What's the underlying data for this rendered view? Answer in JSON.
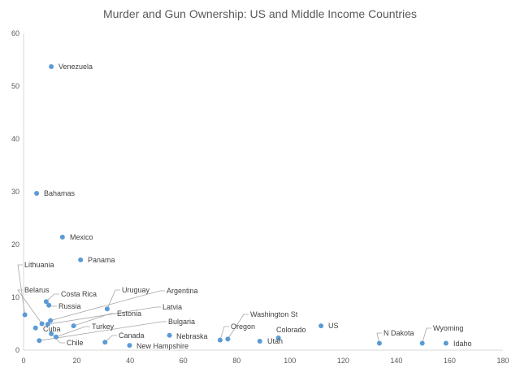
{
  "chart_data": {
    "type": "scatter",
    "title": "Murder and Gun Ownership: US and Middle Income Countries",
    "xlabel": "",
    "ylabel": "",
    "xlim": [
      0,
      180
    ],
    "ylim": [
      0,
      60
    ],
    "xticks": [
      0,
      20,
      40,
      60,
      80,
      100,
      120,
      140,
      160,
      180
    ],
    "yticks": [
      0,
      10,
      20,
      30,
      40,
      50,
      60
    ],
    "grid": false,
    "marker_color": "#5B9BD5",
    "points": [
      {
        "label": "Venezuela",
        "x": 10.4,
        "y": 53.7
      },
      {
        "label": "Bahamas",
        "x": 4.9,
        "y": 29.7
      },
      {
        "label": "Mexico",
        "x": 14.6,
        "y": 21.4
      },
      {
        "label": "Panama",
        "x": 21.4,
        "y": 17.1
      },
      {
        "label": "Lithuania",
        "x": 0.5,
        "y": 6.7
      },
      {
        "label": "Belarus",
        "x": 6.9,
        "y": 5.0
      },
      {
        "label": "Costa Rica",
        "x": 8.5,
        "y": 9.2
      },
      {
        "label": "Russia",
        "x": 9.5,
        "y": 8.5
      },
      {
        "label": "Uruguay",
        "x": 31.4,
        "y": 7.8
      },
      {
        "label": "Argentina",
        "x": 10.1,
        "y": 5.6
      },
      {
        "label": "Latvia",
        "x": 9.1,
        "y": 4.9
      },
      {
        "label": "Estonia",
        "x": 18.8,
        "y": 4.6
      },
      {
        "label": "Cuba",
        "x": 4.5,
        "y": 4.2
      },
      {
        "label": "Chile",
        "x": 10.4,
        "y": 3.1
      },
      {
        "label": "Turkey",
        "x": 12.2,
        "y": 2.5
      },
      {
        "label": "Bulgaria",
        "x": 5.9,
        "y": 1.8
      },
      {
        "label": "Canada",
        "x": 30.6,
        "y": 1.5
      },
      {
        "label": "New Hampshire",
        "x": 39.8,
        "y": 0.9
      },
      {
        "label": "Nebraska",
        "x": 54.8,
        "y": 2.8
      },
      {
        "label": "Oregon",
        "x": 73.8,
        "y": 1.9
      },
      {
        "label": "Washington St",
        "x": 76.7,
        "y": 2.1
      },
      {
        "label": "Utah",
        "x": 88.7,
        "y": 1.7
      },
      {
        "label": "Colorado",
        "x": 95.7,
        "y": 2.3
      },
      {
        "label": "US",
        "x": 111.7,
        "y": 4.6
      },
      {
        "label": "N Dakota",
        "x": 133.6,
        "y": 1.3
      },
      {
        "label": "Wyoming",
        "x": 149.7,
        "y": 1.3
      },
      {
        "label": "Idaho",
        "x": 158.6,
        "y": 1.3
      }
    ]
  }
}
